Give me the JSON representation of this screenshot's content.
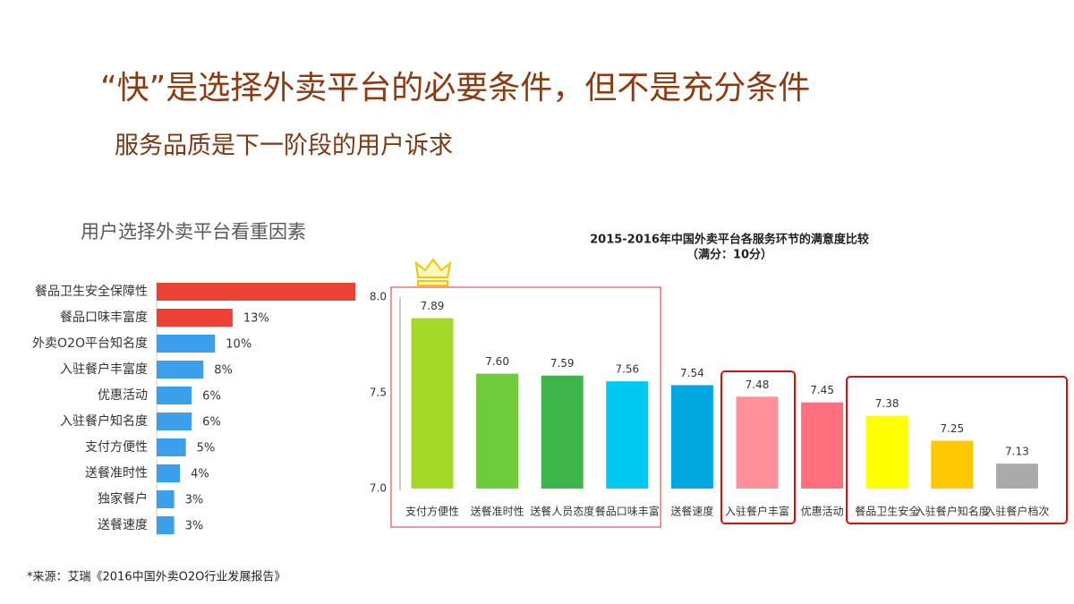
{
  "header": {
    "title": "“快”是选择外卖平台的必要条件，但不是充分条件",
    "subtitle": "服务品质是下一阶段的用户诉求"
  },
  "chart_data": [
    {
      "type": "barh",
      "title": "用户选择外卖平台看重因素",
      "categories": [
        "餐品卫生安全保障性",
        "餐品口味丰富度",
        "外卖O2O平台知名度",
        "入驻餐户丰富度",
        "优惠活动",
        "入驻餐户知名度",
        "支付方便性",
        "送餐准时性",
        "独家餐户",
        "送餐速度"
      ],
      "values": [
        34,
        13,
        10,
        8,
        6,
        6,
        5,
        4,
        3,
        3
      ],
      "value_labels": [
        null,
        "13%",
        "10%",
        "8%",
        "6%",
        "6%",
        "5%",
        "4%",
        "3%",
        "3%"
      ],
      "colors": [
        "#ea4335",
        "#ea4335",
        "#3b9fec",
        "#3b9fec",
        "#3b9fec",
        "#3b9fec",
        "#3b9fec",
        "#3b9fec",
        "#3b9fec",
        "#3b9fec"
      ],
      "xlim": [
        0,
        34
      ]
    },
    {
      "type": "bar",
      "title": "2015-2016年中国外卖平台各服务环节的满意度比较",
      "subtitle": "（满分：10分）",
      "categories": [
        "支付方便性",
        "送餐准时性",
        "送餐人员态度",
        "餐品口味丰富",
        "送餐速度",
        "入驻餐户丰富",
        "优惠活动",
        "餐品卫生安全",
        "入驻餐户知名度",
        "入驻餐户档次"
      ],
      "values": [
        7.89,
        7.6,
        7.59,
        7.56,
        7.54,
        7.48,
        7.45,
        7.38,
        7.25,
        7.13
      ],
      "value_labels": [
        "7.89",
        "7.60",
        "7.59",
        "7.56",
        "7.54",
        "7.48",
        "7.45",
        "7.38",
        "7.25",
        "7.13"
      ],
      "colors": [
        "#a6d82a",
        "#6ecb3c",
        "#3db54a",
        "#00c8f0",
        "#00a8e0",
        "#ff9099",
        "#ff6f7e",
        "#ffff00",
        "#ffc800",
        "#aaaaaa"
      ],
      "ylim": [
        7.0,
        8.0
      ],
      "yticks": [
        {
          "value": 7.0,
          "label": "7.0"
        },
        7.5,
        {
          "value": 8.0,
          "label": "8.0"
        }
      ]
    }
  ],
  "footer": {
    "source": "*来源：艾瑞《2016中国外卖O2O行业发展报告》"
  }
}
